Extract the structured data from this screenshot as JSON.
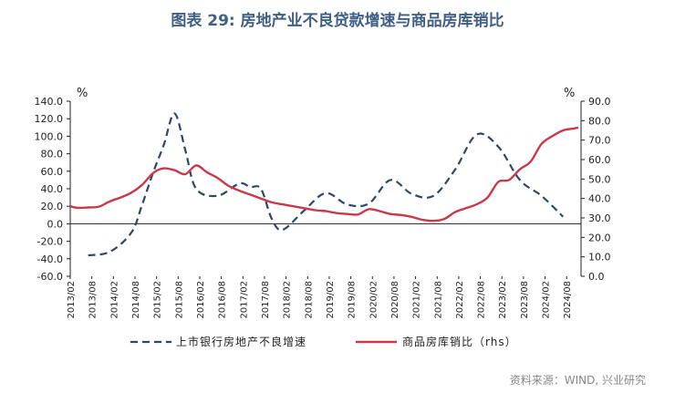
{
  "title": "图表 29: 房地产业不良贷款增速与商品房库销比",
  "source": "资料来源：WIND, 兴业研究",
  "chart_data": {
    "type": "line",
    "left_unit": "%",
    "right_unit": "%",
    "left_axis": {
      "ylim": [
        -60,
        140
      ],
      "ticks": [
        140,
        120,
        100,
        80,
        60,
        40,
        20,
        0,
        -20,
        -40,
        -60
      ],
      "tick_labels": [
        "140.0",
        "120.0",
        "100.0",
        "80.0",
        "60.0",
        "40.0",
        "20.0",
        "0.0",
        "-20.0",
        "-40.0",
        "-60.0"
      ]
    },
    "right_axis": {
      "ylim": [
        0,
        90
      ],
      "ticks": [
        90,
        80,
        70,
        60,
        50,
        40,
        30,
        20,
        10,
        0
      ],
      "tick_labels": [
        "90.0",
        "80.0",
        "70.0",
        "60.0",
        "50.0",
        "40.0",
        "30.0",
        "20.0",
        "10.0",
        "0.0"
      ]
    },
    "x_tick_labels": [
      "2013/02",
      "2013/08",
      "2014/02",
      "2014/08",
      "2015/02",
      "2015/08",
      "2016/02",
      "2016/08",
      "2017/02",
      "2017/08",
      "2018/02",
      "2018/08",
      "2019/02",
      "2019/08",
      "2020/02",
      "2020/08",
      "2021/02",
      "2021/08",
      "2022/02",
      "2022/08",
      "2023/02",
      "2023/08",
      "2024/02",
      "2024/08"
    ],
    "series": [
      {
        "name": "上市银行房地产不良增速",
        "axis": "left",
        "style": "dashed",
        "color": "#2e4668",
        "x": [
          2013.5,
          2014.0,
          2014.5,
          2014.75,
          2015.0,
          2015.25,
          2015.5,
          2015.75,
          2016.0,
          2016.5,
          2017.0,
          2017.25,
          2017.5,
          2017.75,
          2018.0,
          2018.5,
          2019.0,
          2019.5,
          2020.0,
          2020.5,
          2021.0,
          2021.5,
          2022.0,
          2022.5,
          2023.0,
          2023.5,
          2024.0,
          2024.5
        ],
        "y": [
          -36,
          -32,
          -10,
          22,
          58,
          90,
          126,
          84,
          40,
          32,
          46,
          42,
          40,
          6,
          -7,
          15,
          35,
          22,
          23,
          50,
          34,
          32,
          62,
          102,
          88,
          50,
          32,
          8
        ]
      },
      {
        "name": "商品房库销比（rhs）",
        "axis": "right",
        "style": "solid",
        "color": "#c9394a",
        "x": [
          2013.0833,
          2013.25,
          2013.5,
          2013.75,
          2014.0,
          2014.25,
          2014.5,
          2014.75,
          2015.0,
          2015.25,
          2015.5,
          2015.75,
          2016.0,
          2016.25,
          2016.5,
          2016.75,
          2017.0,
          2017.25,
          2017.5,
          2017.75,
          2018.0,
          2018.25,
          2018.5,
          2018.75,
          2019.0,
          2019.25,
          2019.5,
          2019.75,
          2020.0,
          2020.25,
          2020.5,
          2020.75,
          2021.0,
          2021.25,
          2021.5,
          2021.75,
          2022.0,
          2022.25,
          2022.5,
          2022.75,
          2023.0,
          2023.25,
          2023.5,
          2023.75,
          2024.0,
          2024.25,
          2024.5,
          2024.75,
          2024.85
        ],
        "y": [
          36.0,
          35.2,
          35.4,
          35.8,
          38.5,
          40.5,
          43,
          47,
          53,
          55.5,
          54.5,
          52.5,
          57,
          53.5,
          50.5,
          46.5,
          44,
          42,
          40,
          38,
          37,
          36,
          35,
          34,
          33.5,
          32.5,
          32,
          31.8,
          34.5,
          33.5,
          32,
          31.5,
          30.5,
          29,
          28.5,
          29.5,
          33,
          35,
          37,
          40.5,
          48.5,
          49.5,
          55,
          59,
          68,
          72,
          75,
          76,
          76.5
        ]
      }
    ]
  }
}
